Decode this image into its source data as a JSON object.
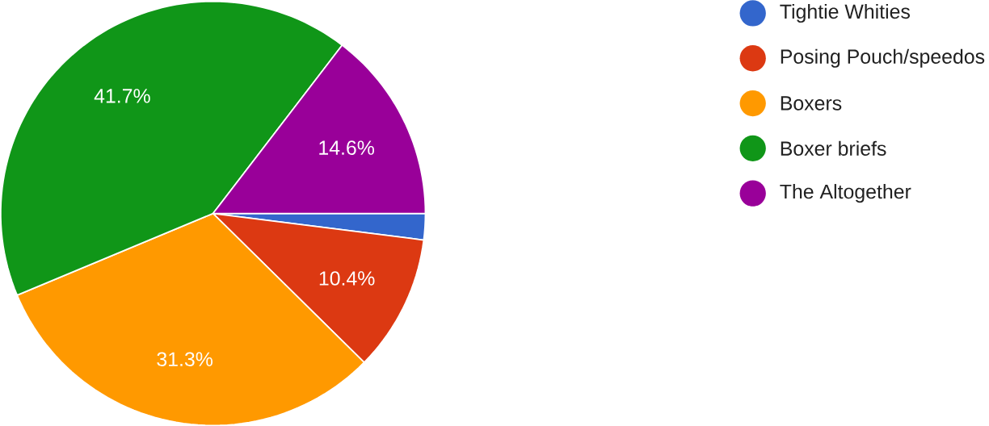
{
  "chart_data": {
    "type": "pie",
    "categories": [
      "Tightie Whities",
      "Posing Pouch/speedos",
      "Boxers",
      "Boxer briefs",
      "The Altogether"
    ],
    "values": [
      2.0,
      10.4,
      31.3,
      41.7,
      14.6
    ],
    "colors": [
      "#3366cc",
      "#dc3912",
      "#ff9900",
      "#109618",
      "#990099"
    ],
    "value_labels": [
      null,
      "10.4%",
      "31.3%",
      "41.7%",
      "14.6%"
    ],
    "legend": "right"
  }
}
